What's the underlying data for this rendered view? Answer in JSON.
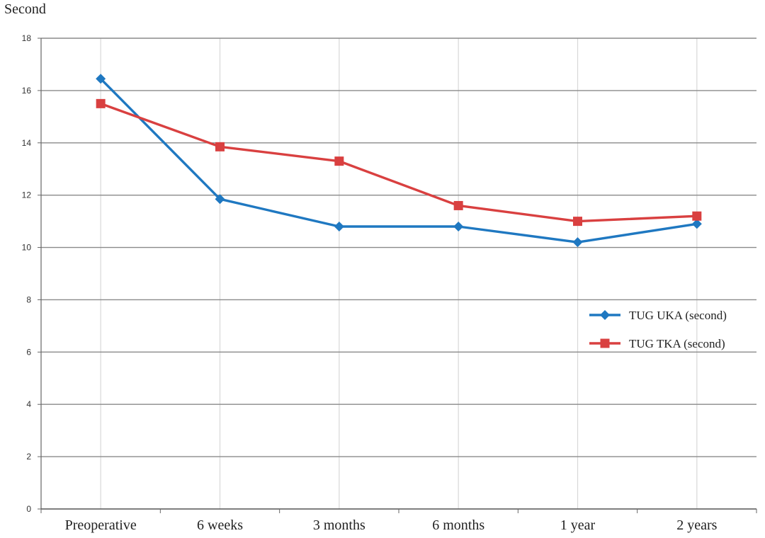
{
  "chart_data": {
    "type": "line",
    "ylabel": "Second",
    "xlabel": "",
    "categories": [
      "Preoperative",
      "6 weeks",
      "3 months",
      "6 months",
      "1 year",
      "2 years"
    ],
    "ylim": [
      0,
      18
    ],
    "yticks": [
      0,
      2,
      4,
      6,
      8,
      10,
      12,
      14,
      16,
      18
    ],
    "grid": {
      "horizontal": true,
      "vertical": true
    },
    "legend_position": "right",
    "series": [
      {
        "name": "TUG UKA (second)",
        "color": "#1f78c1",
        "marker": "diamond",
        "values": [
          16.45,
          11.85,
          10.8,
          10.8,
          10.2,
          10.9
        ]
      },
      {
        "name": "TUG TKA (second)",
        "color": "#d94040",
        "marker": "square",
        "values": [
          15.5,
          13.85,
          13.3,
          11.6,
          11.0,
          11.2
        ]
      }
    ]
  }
}
